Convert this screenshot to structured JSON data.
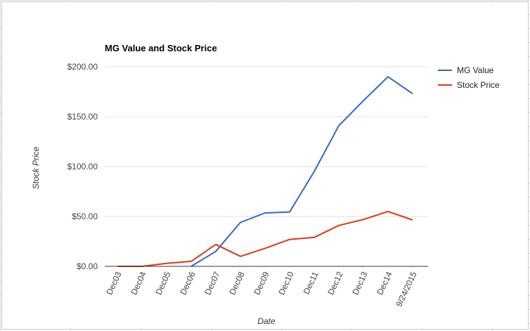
{
  "chart_data": {
    "type": "line",
    "title": "MG Value and Stock Price",
    "xlabel": "Date",
    "ylabel": "Stock Price",
    "categories": [
      "Dec03",
      "Dec04",
      "Dec05",
      "Dec06",
      "Dec07",
      "Dec08",
      "Dec09",
      "Dec10",
      "Dec11",
      "Dec12",
      "Dec13",
      "Dec14",
      "9/24/2015"
    ],
    "y_ticks": [
      "$0.00",
      "$50.00",
      "$100.00",
      "$150.00",
      "$200.00"
    ],
    "ylim": [
      0,
      200
    ],
    "grid": true,
    "legend_position": "right",
    "series": [
      {
        "name": "MG Value",
        "color": "#3366cc",
        "values": [
          null,
          null,
          null,
          0,
          15,
          44,
          53.5,
          54.5,
          95,
          141,
          166,
          190,
          173
        ]
      },
      {
        "name": "Stock Price",
        "color": "#dc3912",
        "values": [
          0,
          0,
          3,
          5,
          22,
          10,
          18,
          27,
          29,
          41,
          47,
          55,
          46.5
        ]
      }
    ]
  }
}
